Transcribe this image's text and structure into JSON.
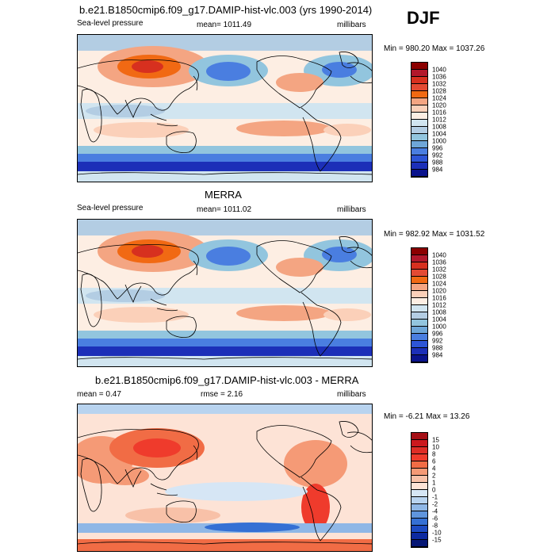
{
  "season": "DJF",
  "panels": [
    {
      "title": "b.e21.B1850cmip6.f09_g17.DAMIP-hist-vlc.003 (yrs 1990-2014)",
      "left_label": "Sea-level pressure",
      "center_label": "mean= 1011.49",
      "right_label": "millibars",
      "minmax": "Min = 980.20 Max = 1037.26",
      "colorbar_labels": [
        "1040",
        "1036",
        "1032",
        "1028",
        "1024",
        "1020",
        "1016",
        "1012",
        "1008",
        "1004",
        "1000",
        "996",
        "992",
        "988",
        "984"
      ],
      "colors": [
        "#8b0000",
        "#b2182b",
        "#d7301f",
        "#e34a33",
        "#f16913",
        "#f4a582",
        "#fbd0b9",
        "#fdeee3",
        "#d1e5f0",
        "#b3cde3",
        "#92c5de",
        "#6ea6d8",
        "#4a7ee0",
        "#2d55d6",
        "#1c2fb8",
        "#0a138c"
      ]
    },
    {
      "title": "MERRA",
      "left_label": "Sea-level pressure",
      "center_label": "mean= 1011.02",
      "right_label": "millibars",
      "minmax": "Min = 982.92 Max = 1031.52",
      "colorbar_labels": [
        "1040",
        "1036",
        "1032",
        "1028",
        "1024",
        "1020",
        "1016",
        "1012",
        "1008",
        "1004",
        "1000",
        "996",
        "992",
        "988",
        "984"
      ],
      "colors": [
        "#8b0000",
        "#b2182b",
        "#d7301f",
        "#e34a33",
        "#f16913",
        "#f4a582",
        "#fbd0b9",
        "#fdeee3",
        "#d1e5f0",
        "#b3cde3",
        "#92c5de",
        "#6ea6d8",
        "#4a7ee0",
        "#2d55d6",
        "#1c2fb8",
        "#0a138c"
      ]
    },
    {
      "title": "b.e21.B1850cmip6.f09_g17.DAMIP-hist-vlc.003 - MERRA",
      "left_label": "mean =  0.47",
      "center_label": "rmse =   2.16",
      "right_label": "millibars",
      "minmax": "Min =  -6.21 Max =  13.26",
      "colorbar_labels": [
        "15",
        "10",
        "8",
        "6",
        "4",
        "2",
        "1",
        "0",
        "-1",
        "-2",
        "-4",
        "-6",
        "-8",
        "-10",
        "-15"
      ],
      "colors": [
        "#a50f15",
        "#cb181d",
        "#de2d26",
        "#ef3b2c",
        "#f16c45",
        "#f59a76",
        "#f8c1a8",
        "#fde3d6",
        "#d6e6f5",
        "#b8d3ef",
        "#8fb7e6",
        "#5f95dd",
        "#3570d4",
        "#1d4bc2",
        "#0d2aa0",
        "#061775"
      ]
    }
  ]
}
